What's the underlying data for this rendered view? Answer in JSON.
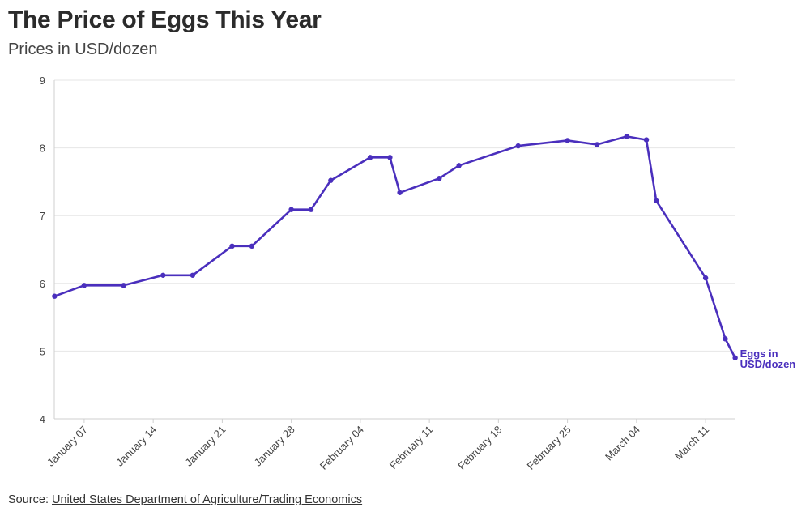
{
  "title": "The Price of Eggs This Year",
  "subtitle": "Prices in USD/dozen",
  "source": {
    "prefix": "Source: ",
    "link_text": "United States Department of Agriculture/Trading Economics"
  },
  "colors": {
    "line": "#4a2fbd",
    "grid": "#e6e6e6",
    "axis_text": "#444444"
  },
  "chart_data": {
    "type": "line",
    "title": "The Price of Eggs This Year",
    "subtitle": "Prices in USD/dozen",
    "xlabel": "",
    "ylabel": "",
    "ylim": [
      4,
      9
    ],
    "y_ticks": [
      4,
      5,
      6,
      7,
      8,
      9
    ],
    "grid": true,
    "x_tick_labels": [
      "January 07",
      "January 14",
      "January 21",
      "January 28",
      "February 04",
      "February 11",
      "February 18",
      "February 25",
      "March 04",
      "March 11"
    ],
    "series": [
      {
        "name": "Eggs in USD/dozen",
        "points": [
          {
            "date": "2023-01-04",
            "value": 5.81
          },
          {
            "date": "2023-01-07",
            "value": 5.97
          },
          {
            "date": "2023-01-11",
            "value": 5.97
          },
          {
            "date": "2023-01-15",
            "value": 6.12
          },
          {
            "date": "2023-01-18",
            "value": 6.12
          },
          {
            "date": "2023-01-22",
            "value": 6.55
          },
          {
            "date": "2023-01-24",
            "value": 6.55
          },
          {
            "date": "2023-01-28",
            "value": 7.09
          },
          {
            "date": "2023-01-30",
            "value": 7.09
          },
          {
            "date": "2023-02-01",
            "value": 7.52
          },
          {
            "date": "2023-02-05",
            "value": 7.86
          },
          {
            "date": "2023-02-07",
            "value": 7.86
          },
          {
            "date": "2023-02-08",
            "value": 7.34
          },
          {
            "date": "2023-02-12",
            "value": 7.55
          },
          {
            "date": "2023-02-14",
            "value": 7.74
          },
          {
            "date": "2023-02-20",
            "value": 8.03
          },
          {
            "date": "2023-02-25",
            "value": 8.11
          },
          {
            "date": "2023-02-28",
            "value": 8.05
          },
          {
            "date": "2023-03-03",
            "value": 8.17
          },
          {
            "date": "2023-03-05",
            "value": 8.12
          },
          {
            "date": "2023-03-06",
            "value": 7.22
          },
          {
            "date": "2023-03-11",
            "value": 6.08
          },
          {
            "date": "2023-03-13",
            "value": 5.18
          },
          {
            "date": "2023-03-14",
            "value": 4.9
          }
        ]
      }
    ],
    "series_label_lines": [
      "Eggs in",
      "USD/dozen"
    ]
  }
}
